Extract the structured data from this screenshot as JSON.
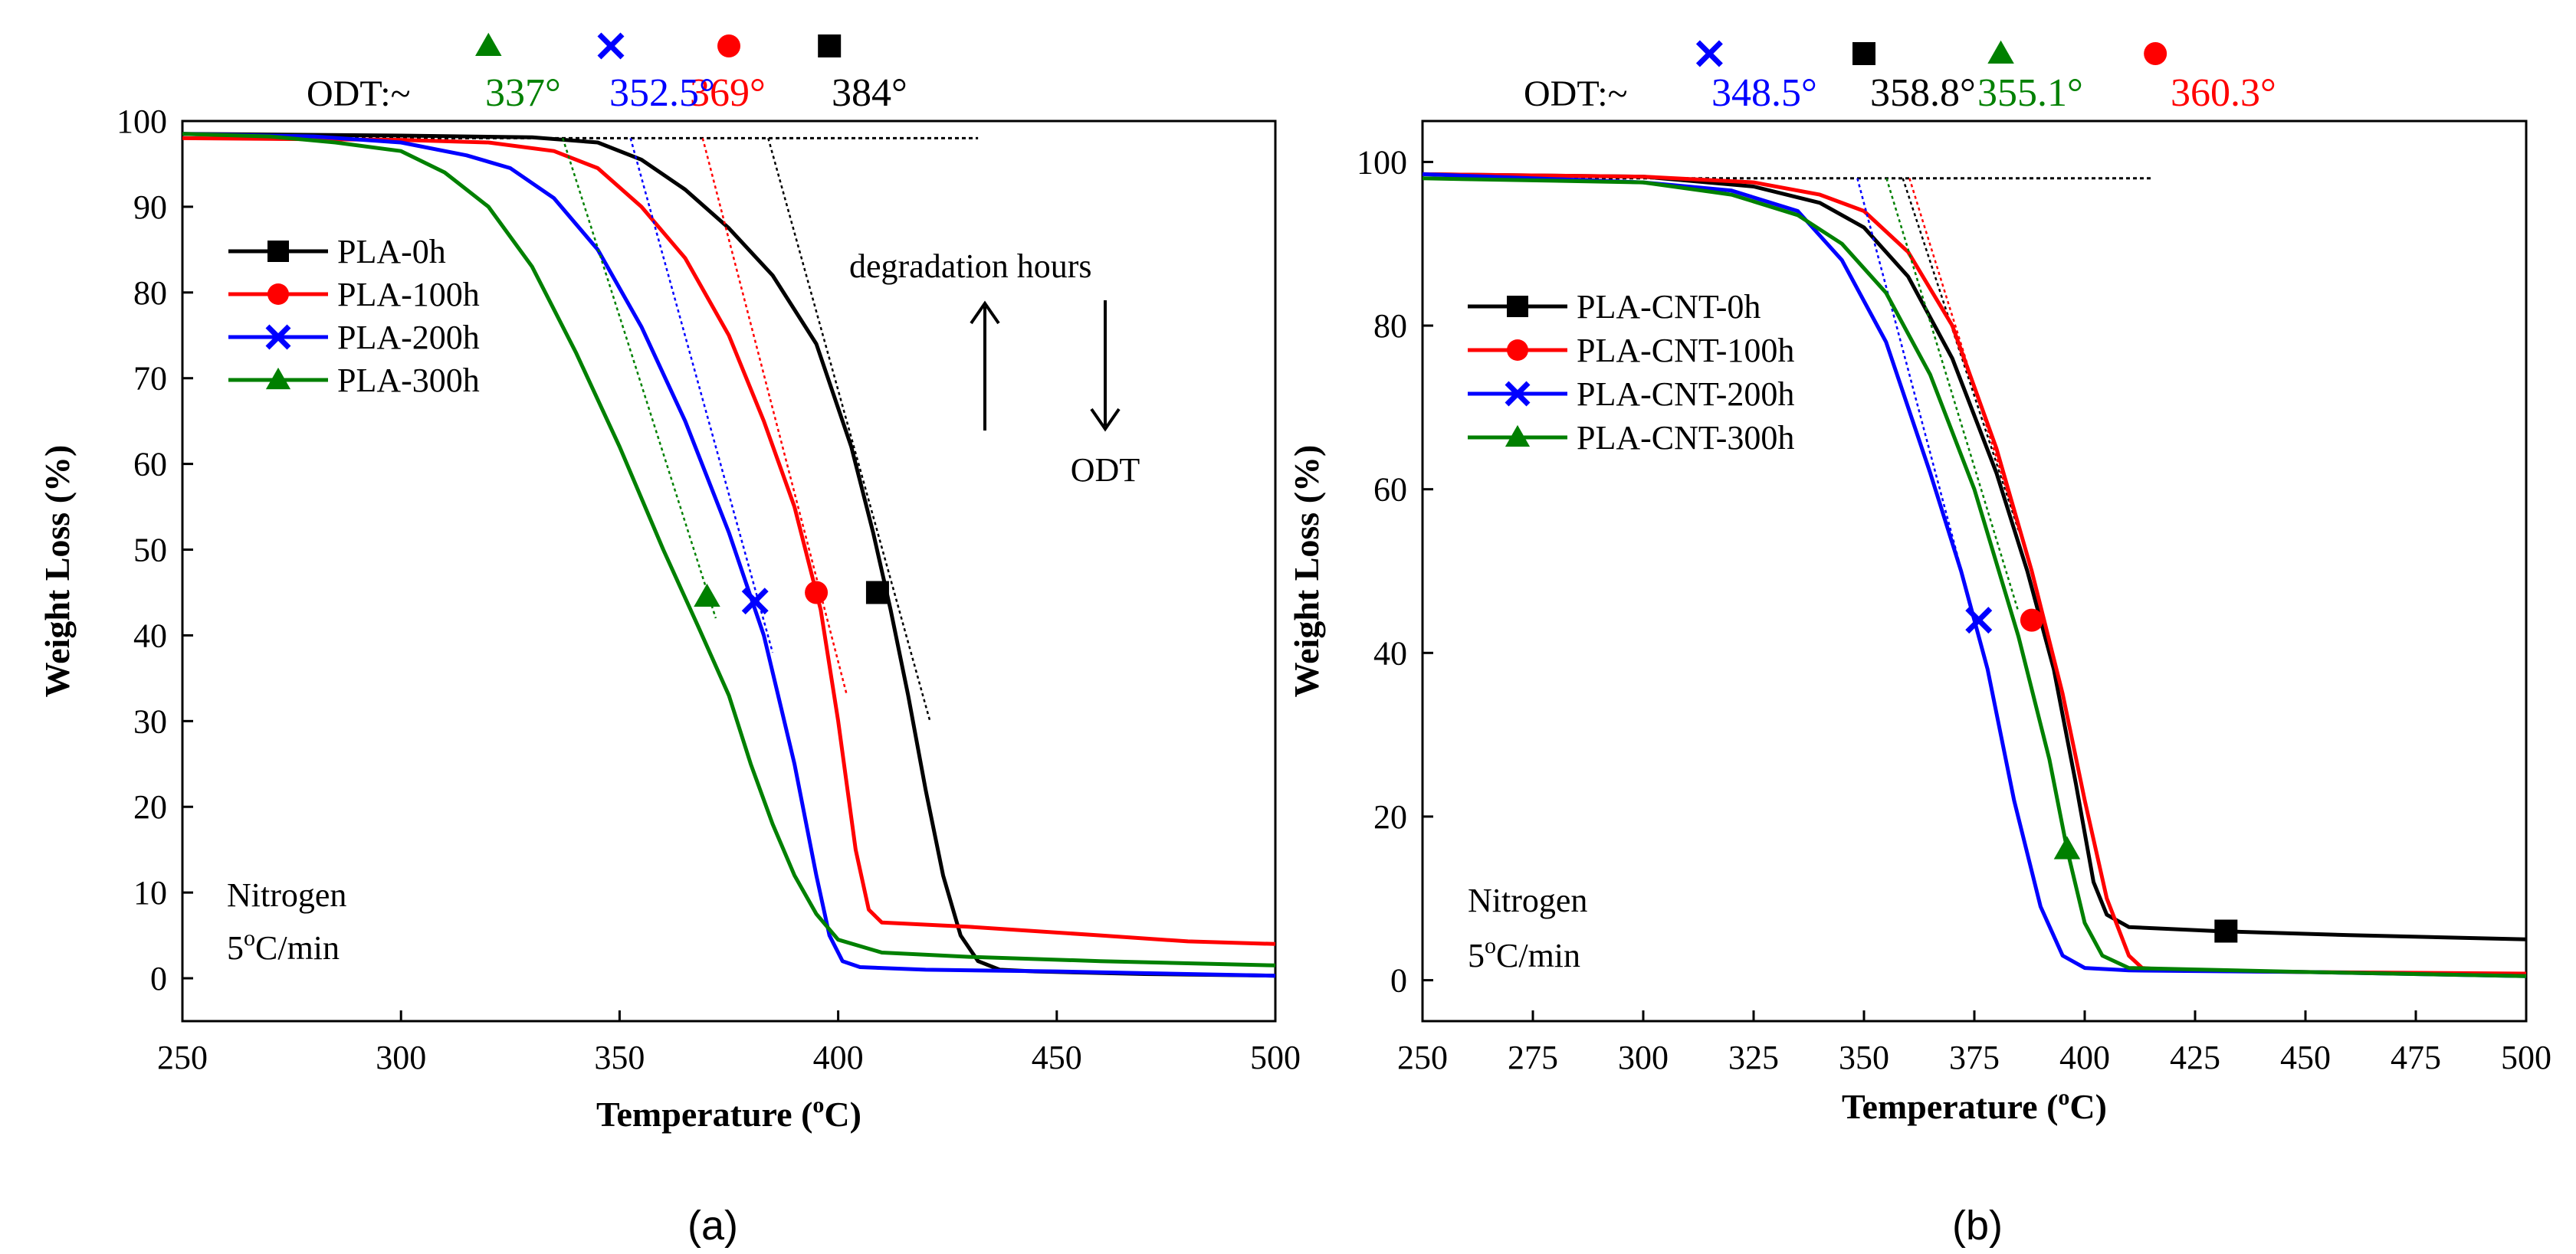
{
  "panel_labels": [
    "(a)",
    "(b)"
  ],
  "chart_data": [
    {
      "panel": "(a)",
      "type": "line",
      "xlabel": "Temperature (",
      "xlabel_sup": "o",
      "xlabel_unit": "C)",
      "ylabel": "Weight Loss (%)",
      "xlim": [
        250,
        500
      ],
      "ylim": [
        -5,
        100
      ],
      "xticks": [
        250,
        300,
        350,
        400,
        450,
        500
      ],
      "yticks": [
        0,
        10,
        20,
        30,
        40,
        50,
        60,
        70,
        80,
        90,
        100
      ],
      "baseline": {
        "y": 98,
        "x": [
          250,
          432
        ]
      },
      "odt_prefix": "ODT:~",
      "notes": {
        "line1": "Nitrogen",
        "line2_pre": "5",
        "line2_sup": "o",
        "line2_post": "C/min"
      },
      "arrows": {
        "up_label": "degradation hours",
        "down_label": "ODT"
      },
      "series": [
        {
          "name": "PLA-0h",
          "color": "#000000",
          "marker": "square",
          "x": [
            250,
            300,
            330,
            345,
            355,
            365,
            375,
            385,
            395,
            403,
            408,
            412,
            416,
            420,
            424,
            428,
            432,
            437,
            445,
            470,
            500
          ],
          "y": [
            98.5,
            98.3,
            98.1,
            97.5,
            95.5,
            92,
            87.5,
            82,
            74,
            62,
            52,
            43,
            33,
            22,
            12,
            5,
            2,
            1,
            0.8,
            0.5,
            0.3
          ],
          "marker_point": {
            "x": 409,
            "y": 45
          },
          "tangent": {
            "x": [
              384,
              421
            ],
            "y": [
              98,
              30
            ]
          },
          "odt_label": "384°",
          "odt_marker_x": 398
        },
        {
          "name": "PLA-100h",
          "color": "#ff0000",
          "marker": "circle",
          "x": [
            250,
            300,
            320,
            335,
            345,
            355,
            365,
            375,
            383,
            390,
            396,
            400,
            404,
            407,
            410,
            430,
            460,
            480,
            500
          ],
          "y": [
            98,
            97.8,
            97.5,
            96.5,
            94.5,
            90,
            84,
            75,
            65,
            55,
            43,
            30,
            15,
            8,
            6.5,
            6,
            5,
            4.3,
            4
          ],
          "marker_point": {
            "x": 395,
            "y": 45
          },
          "tangent": {
            "x": [
              369,
              402
            ],
            "y": [
              98,
              33
            ]
          },
          "odt_label": "369°",
          "odt_marker_x": 375
        },
        {
          "name": "PLA-200h",
          "color": "#0000ff",
          "marker": "cross",
          "x": [
            250,
            280,
            300,
            315,
            325,
            335,
            345,
            355,
            365,
            375,
            383,
            390,
            395,
            398,
            401,
            405,
            420,
            450,
            500
          ],
          "y": [
            98.5,
            98.2,
            97.5,
            96,
            94.5,
            91,
            85,
            76,
            65,
            52,
            40,
            25,
            12,
            5,
            2,
            1.3,
            1,
            0.8,
            0.3
          ],
          "marker_point": {
            "x": 381,
            "y": 44
          },
          "tangent": {
            "x": [
              352.5,
              385
            ],
            "y": [
              98,
              38
            ]
          },
          "odt_label": "352.5°",
          "odt_marker_x": 348
        },
        {
          "name": "PLA-300h",
          "color": "#008000",
          "marker": "triangle",
          "x": [
            250,
            270,
            285,
            300,
            310,
            320,
            330,
            340,
            350,
            360,
            368,
            375,
            380,
            385,
            390,
            395,
            400,
            410,
            430,
            460,
            500
          ],
          "y": [
            98.5,
            98.2,
            97.5,
            96.5,
            94,
            90,
            83,
            73,
            62,
            50,
            41,
            33,
            25,
            18,
            12,
            7.5,
            4.5,
            3,
            2.5,
            2,
            1.5
          ],
          "marker_point": {
            "x": 370,
            "y": 44.5
          },
          "tangent": {
            "x": [
              337,
              372
            ],
            "y": [
              98,
              42
            ]
          },
          "odt_label": "337°",
          "odt_marker_x": 320
        }
      ]
    },
    {
      "panel": "(b)",
      "type": "line",
      "xlabel": "Temperature (",
      "xlabel_sup": "o",
      "xlabel_unit": "C)",
      "ylabel": "Weight Loss (%)",
      "xlim": [
        250,
        500
      ],
      "ylim": [
        -5,
        105
      ],
      "xticks": [
        250,
        275,
        300,
        325,
        350,
        375,
        400,
        425,
        450,
        475,
        500
      ],
      "yticks": [
        0,
        20,
        40,
        60,
        80,
        100
      ],
      "baseline": {
        "y": 98,
        "x": [
          250,
          415
        ]
      },
      "odt_prefix": "ODT:~",
      "notes": {
        "line1": "Nitrogen",
        "line2_pre": "5",
        "line2_sup": "o",
        "line2_post": "C/min"
      },
      "series": [
        {
          "name": "PLA-CNT-0h",
          "color": "#000000",
          "marker": "square",
          "x": [
            250,
            300,
            325,
            340,
            350,
            360,
            370,
            380,
            387,
            393,
            398,
            402,
            405,
            410,
            430,
            460,
            500
          ],
          "y": [
            98.5,
            98.2,
            97,
            95,
            92,
            86,
            76,
            62,
            50,
            38,
            24,
            12,
            8,
            6.5,
            6,
            5.5,
            5
          ],
          "marker_point": {
            "x": 432,
            "y": 6
          },
          "tangent": {
            "x": [
              358.8,
              385
            ],
            "y": [
              98,
              55
            ]
          },
          "odt_label": "358.8°",
          "odt_marker_x": 350
        },
        {
          "name": "PLA-CNT-100h",
          "color": "#ff0000",
          "marker": "circle",
          "x": [
            250,
            300,
            325,
            340,
            350,
            360,
            370,
            380,
            388,
            395,
            400,
            405,
            410,
            413,
            420,
            450,
            500
          ],
          "y": [
            98.5,
            98.2,
            97.5,
            96,
            94,
            89,
            80,
            65,
            50,
            35,
            22,
            10,
            3,
            1.5,
            1.2,
            1,
            0.8
          ],
          "marker_point": {
            "x": 388,
            "y": 44
          },
          "tangent": {
            "x": [
              360.3,
              388
            ],
            "y": [
              98,
              50
            ]
          },
          "odt_label": "360.3°",
          "odt_marker_x": 416
        },
        {
          "name": "PLA-CNT-200h",
          "color": "#0000ff",
          "marker": "cross",
          "x": [
            250,
            300,
            320,
            335,
            345,
            355,
            365,
            372,
            378,
            384,
            390,
            395,
            400,
            410,
            450,
            500
          ],
          "y": [
            98.5,
            97.5,
            96.5,
            94,
            88,
            78,
            62,
            50,
            38,
            22,
            9,
            3,
            1.5,
            1.2,
            1,
            0.5
          ],
          "marker_point": {
            "x": 376,
            "y": 44
          },
          "tangent": {
            "x": [
              348.5,
              378
            ],
            "y": [
              98,
              38
            ]
          },
          "odt_label": "348.5°",
          "odt_marker_x": 315
        },
        {
          "name": "PLA-CNT-300h",
          "color": "#008000",
          "marker": "triangle",
          "x": [
            250,
            300,
            320,
            335,
            345,
            355,
            365,
            375,
            385,
            392,
            396,
            400,
            404,
            410,
            450,
            500
          ],
          "y": [
            98,
            97.5,
            96,
            93.5,
            90,
            84,
            74,
            60,
            42,
            27,
            16,
            7,
            3,
            1.5,
            1,
            0.5
          ],
          "marker_point": {
            "x": 396,
            "y": 16
          },
          "tangent": {
            "x": [
              355.1,
              385
            ],
            "y": [
              98,
              45
            ]
          },
          "odt_label": "355.1°",
          "odt_marker_x": 381
        }
      ]
    }
  ]
}
